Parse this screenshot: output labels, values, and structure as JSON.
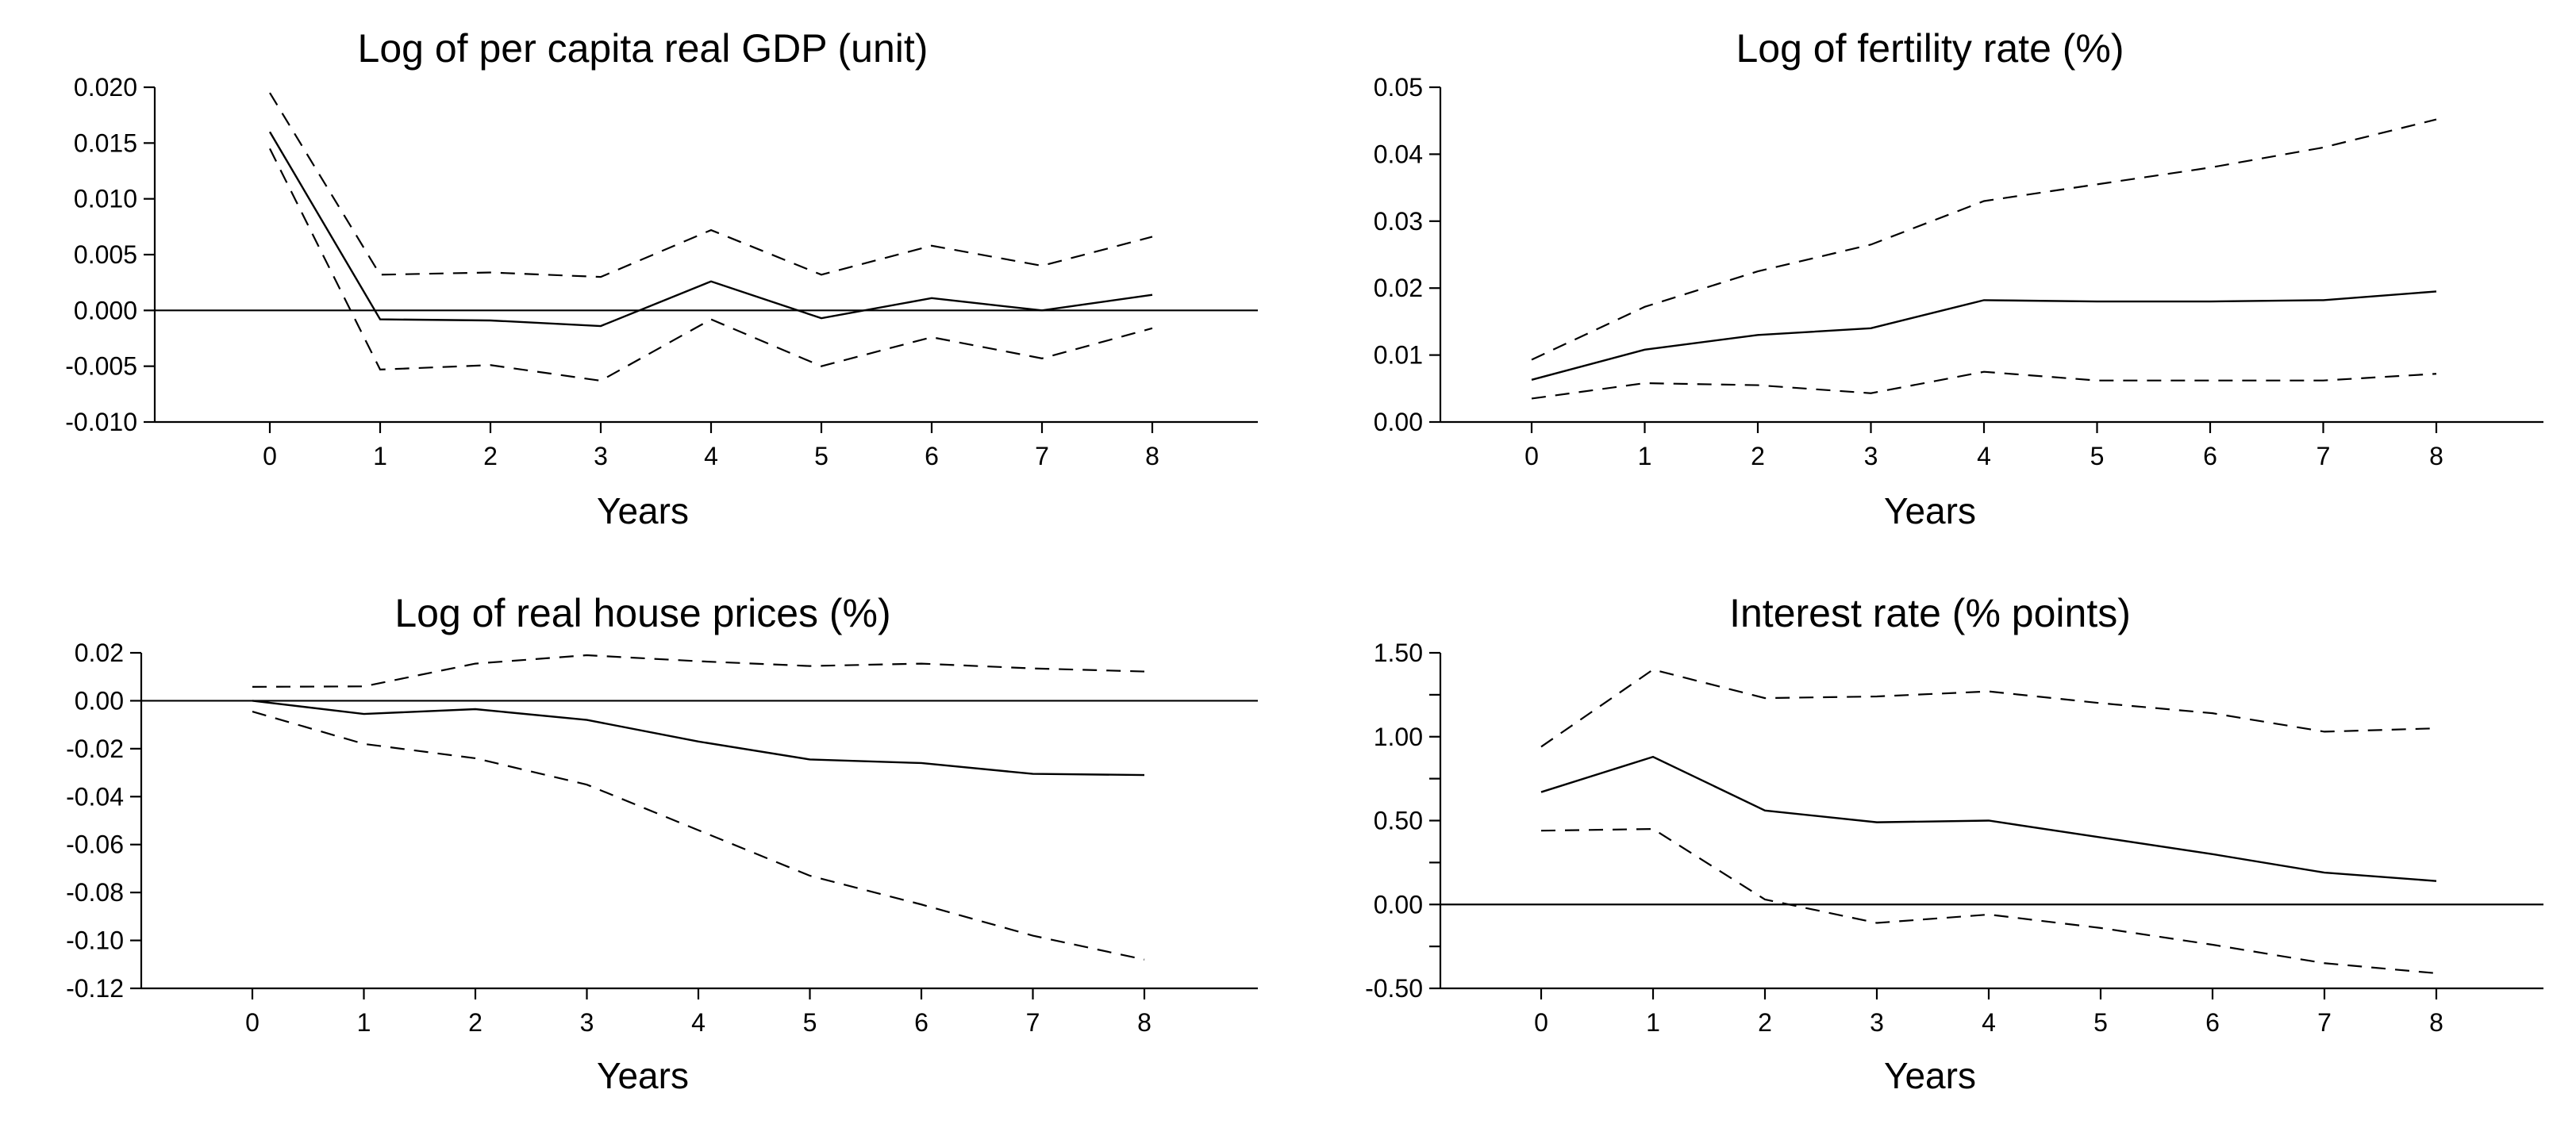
{
  "chart_data": [
    {
      "type": "line",
      "title": "Log of per capita real GDP (unit)",
      "xlabel": "Years",
      "ylabel": "",
      "x": [
        0,
        1,
        2,
        3,
        4,
        5,
        6,
        7,
        8
      ],
      "xticks": [
        "0",
        "1",
        "2",
        "3",
        "4",
        "5",
        "6",
        "7",
        "8"
      ],
      "yticks": [
        0.02,
        0.015,
        0.01,
        0.005,
        0.0,
        -0.005,
        -0.01
      ],
      "ytick_labels": [
        "0.020",
        "0.015",
        "0.010",
        "0.005",
        "0.000",
        "-0.005",
        "-0.010"
      ],
      "ylim": [
        -0.01,
        0.02
      ],
      "zero_line": true,
      "series": [
        {
          "name": "upper",
          "style": "dashed",
          "values": [
            0.0195,
            0.0032,
            0.0034,
            0.003,
            0.0072,
            0.0032,
            0.0058,
            0.004,
            0.0066
          ]
        },
        {
          "name": "estimate",
          "style": "solid",
          "values": [
            0.016,
            -0.0008,
            -0.0009,
            -0.0014,
            0.0026,
            -0.0007,
            0.0011,
            0.0,
            0.0014
          ]
        },
        {
          "name": "lower",
          "style": "dashed",
          "values": [
            0.0145,
            -0.0053,
            -0.0049,
            -0.0063,
            -0.0008,
            -0.005,
            -0.0024,
            -0.0043,
            -0.0016
          ]
        }
      ]
    },
    {
      "type": "line",
      "title": "Log of fertility rate (%)",
      "xlabel": "Years",
      "ylabel": "",
      "x": [
        0,
        1,
        2,
        3,
        4,
        5,
        6,
        7,
        8
      ],
      "xticks": [
        "0",
        "1",
        "2",
        "3",
        "4",
        "5",
        "6",
        "7",
        "8"
      ],
      "yticks": [
        0.05,
        0.04,
        0.03,
        0.02,
        0.01,
        0.0
      ],
      "ytick_labels": [
        "0.05",
        "0.04",
        "0.03",
        "0.02",
        "0.01",
        "0.00"
      ],
      "ylim": [
        0.0,
        0.05
      ],
      "zero_line": false,
      "series": [
        {
          "name": "upper",
          "style": "dashed",
          "values": [
            0.0093,
            0.0172,
            0.0225,
            0.0265,
            0.033,
            0.0355,
            0.038,
            0.041,
            0.0452
          ]
        },
        {
          "name": "estimate",
          "style": "solid",
          "values": [
            0.0063,
            0.0108,
            0.013,
            0.014,
            0.0182,
            0.018,
            0.018,
            0.0182,
            0.0195
          ]
        },
        {
          "name": "lower",
          "style": "dashed",
          "values": [
            0.0035,
            0.0058,
            0.0055,
            0.0043,
            0.0075,
            0.0062,
            0.0062,
            0.0062,
            0.0072
          ]
        }
      ]
    },
    {
      "type": "line",
      "title": "Log of real house prices (%)",
      "xlabel": "Years",
      "ylabel": "",
      "x": [
        0,
        1,
        2,
        3,
        4,
        5,
        6,
        7,
        8
      ],
      "xticks": [
        "0",
        "1",
        "2",
        "3",
        "4",
        "5",
        "6",
        "7",
        "8"
      ],
      "yticks": [
        0.02,
        0.0,
        -0.02,
        -0.04,
        -0.06,
        -0.08,
        -0.1,
        -0.12
      ],
      "ytick_labels": [
        "0.02",
        "0.00",
        "-0.02",
        "-0.04",
        "-0.06",
        "-0.08",
        "-0.10",
        "-0.12"
      ],
      "ylim": [
        -0.12,
        0.02
      ],
      "zero_line": true,
      "series": [
        {
          "name": "upper",
          "style": "dashed",
          "values": [
            0.0058,
            0.006,
            0.0155,
            0.019,
            0.0165,
            0.0145,
            0.0155,
            0.0135,
            0.0122
          ]
        },
        {
          "name": "estimate",
          "style": "solid",
          "values": [
            0.0,
            -0.0055,
            -0.0035,
            -0.008,
            -0.017,
            -0.0245,
            -0.026,
            -0.0305,
            -0.031
          ]
        },
        {
          "name": "lower",
          "style": "dashed",
          "values": [
            -0.0045,
            -0.018,
            -0.024,
            -0.035,
            -0.054,
            -0.073,
            -0.085,
            -0.098,
            -0.108
          ]
        }
      ]
    },
    {
      "type": "line",
      "title": "Interest rate (% points)",
      "xlabel": "Years",
      "ylabel": "",
      "x": [
        0,
        1,
        2,
        3,
        4,
        5,
        6,
        7,
        8
      ],
      "xticks": [
        "0",
        "1",
        "2",
        "3",
        "4",
        "5",
        "6",
        "7",
        "8"
      ],
      "yticks": [
        1.5,
        1.0,
        0.5,
        0.0,
        -0.5
      ],
      "ytick_labels": [
        "1.50",
        "1.00",
        "0.50",
        "0.00",
        "-0.50"
      ],
      "minor_yticks": [
        1.25,
        0.75,
        0.25,
        -0.25
      ],
      "ylim": [
        -0.5,
        1.5
      ],
      "zero_line": true,
      "series": [
        {
          "name": "upper",
          "style": "dashed",
          "values": [
            0.94,
            1.4,
            1.23,
            1.24,
            1.27,
            1.2,
            1.14,
            1.03,
            1.05
          ]
        },
        {
          "name": "estimate",
          "style": "solid",
          "values": [
            0.67,
            0.88,
            0.56,
            0.49,
            0.5,
            0.4,
            0.3,
            0.19,
            0.14
          ]
        },
        {
          "name": "lower",
          "style": "dashed",
          "values": [
            0.44,
            0.45,
            0.03,
            -0.11,
            -0.06,
            -0.14,
            -0.24,
            -0.35,
            -0.41
          ]
        }
      ]
    }
  ]
}
